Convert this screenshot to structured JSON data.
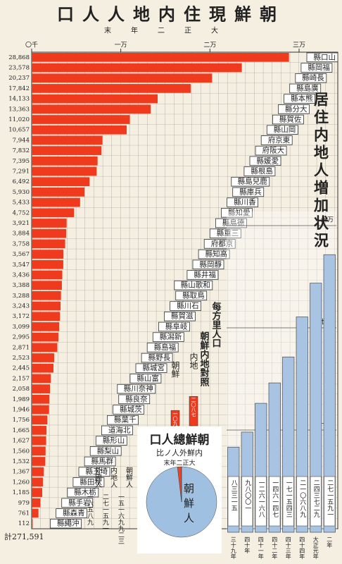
{
  "title": "口人人地内住現鮮朝",
  "subtitle": "末年二正大",
  "chart_data": [
    {
      "type": "hbar",
      "color": "#f03a1e",
      "annotation": "計271,591",
      "categories": [
        "縣口山",
        "縣岡福",
        "縣崎長",
        "縣島廣",
        "縣本熊",
        "縣分大",
        "縣賀佐",
        "縣山岡",
        "府京東",
        "府阪大",
        "縣媛愛",
        "縣根島",
        "縣島兒鹿",
        "縣庫兵",
        "縣川香",
        "縣知愛",
        "縣島德",
        "縣重三",
        "府都京",
        "縣知高",
        "縣岡靜",
        "縣井福",
        "縣山歌和",
        "縣取鳥",
        "縣川石",
        "縣賀滋",
        "縣阜岐",
        "縣潟新",
        "縣島福",
        "縣野長",
        "縣城宮",
        "縣山富",
        "縣川奈神",
        "縣良奈",
        "縣城茨",
        "縣葉千",
        "道海北",
        "縣形山",
        "縣梨山",
        "縣馬群",
        "縣玉埼",
        "縣田秋",
        "縣木栃",
        "縣手岩",
        "縣森青",
        "縣繩沖"
      ],
      "values": [
        28868,
        23578,
        20237,
        17842,
        14133,
        13363,
        11020,
        10657,
        7944,
        7832,
        7395,
        7291,
        6492,
        5930,
        5433,
        4752,
        3921,
        3884,
        3758,
        3567,
        3547,
        3436,
        3388,
        3288,
        3243,
        3172,
        3099,
        2995,
        2871,
        2523,
        2445,
        2157,
        2058,
        1989,
        1946,
        1756,
        1665,
        1627,
        1560,
        1532,
        1367,
        1260,
        1185,
        979,
        761,
        112
      ],
      "value_labels": [
        "28,868",
        "23,578",
        "20,237",
        "17,842",
        "14,133",
        "13,363",
        "11,020",
        "10,657",
        "7,944",
        "7,832",
        "7,395",
        "7,291",
        "6,492",
        "5,930",
        "5,433",
        "4,752",
        "3,921",
        "3,884",
        "3,758",
        "3,567",
        "3,547",
        "3,436",
        "3,388",
        "3,288",
        "3,243",
        "3,172",
        "3,099",
        "2,995",
        "2,871",
        "2,523",
        "2,445",
        "2,157",
        "2,058",
        "1,989",
        "1,946",
        "1,756",
        "1,665",
        "1,627",
        "1,560",
        "1,532",
        "1,367",
        "1,260",
        "1,185",
        "979",
        "761",
        "112"
      ],
      "xlim": [
        0,
        30000
      ],
      "xticks": [
        {
          "value": 0,
          "label": "〇千"
        },
        {
          "value": 10000,
          "label": "一万"
        },
        {
          "value": 20000,
          "label": "二万"
        },
        {
          "value": 30000,
          "label": "三万"
        }
      ]
    },
    {
      "type": "bar",
      "title": "居住内地人増加状況",
      "color": "#a9c4e2",
      "categories": [
        "三十九年",
        "四十年",
        "四十一年",
        "四十二年",
        "四十三年",
        "四十四年",
        "大正元年",
        "二年"
      ],
      "values": [
        83315,
        98001,
        126168,
        146147,
        171543,
        210689,
        243729,
        271591
      ],
      "value_labels": [
        "八三三一五",
        "九八〇〇一",
        "一二六一六八",
        "一四六一四七",
        "一七一五四三",
        "二一〇六八九",
        "二四三七二九",
        "二七一五九一"
      ],
      "ylim": [
        0,
        300000
      ],
      "yticks": [
        {
          "value": 100000,
          "label": "十万"
        },
        {
          "value": 200000,
          "label": "廿万"
        },
        {
          "value": 300000,
          "label": "卅万"
        }
      ]
    },
    {
      "type": "bar",
      "title": "每方里人口",
      "subtitle": "朝鮮内地對照",
      "color": "#f03a1e",
      "categories": [
        "朝鮮",
        "内地"
      ],
      "values": [
        1092,
        2087
      ],
      "value_labels": [
        "一〇九二",
        "二〇八七"
      ],
      "ylim": [
        0,
        3000
      ]
    },
    {
      "type": "pie",
      "title": "口人總鮮朝",
      "subtitle": "比ノ人外鮮内",
      "note": "末年二正大",
      "categories": [
        "朝鮮人",
        "内地人",
        "外國人"
      ],
      "values": [
        15169923,
        271591,
        16589
      ],
      "value_labels": [
        "一五一六九九二三",
        "二七一五九一",
        "一六五八九"
      ],
      "colors": [
        "#9fc0e0",
        "#e8452a",
        "#6a6a6a"
      ]
    }
  ]
}
